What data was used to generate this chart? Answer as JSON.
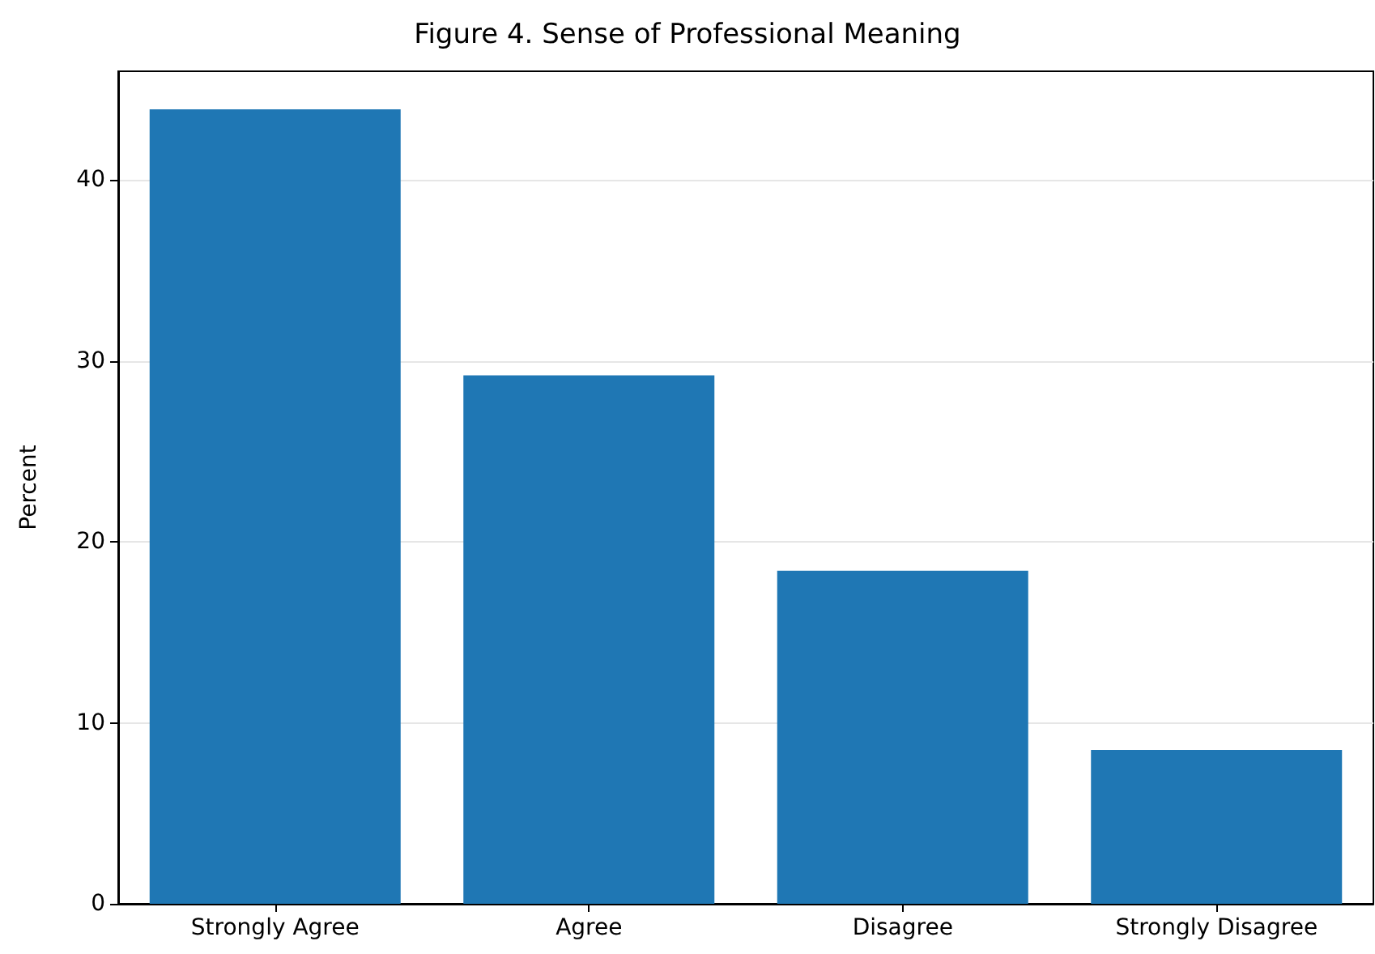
{
  "chart_data": {
    "type": "bar",
    "title": "Figure 4. Sense of Professional Meaning",
    "ylabel": "Percent",
    "categories": [
      "Strongly Agree",
      "Agree",
      "Disagree",
      "Strongly Disagree"
    ],
    "values": [
      43.9,
      29.2,
      18.4,
      8.5
    ],
    "color": "#1f77b4",
    "ylim": [
      0,
      46
    ],
    "yticks": [
      0,
      10,
      20,
      30,
      40
    ],
    "grid": "y"
  }
}
